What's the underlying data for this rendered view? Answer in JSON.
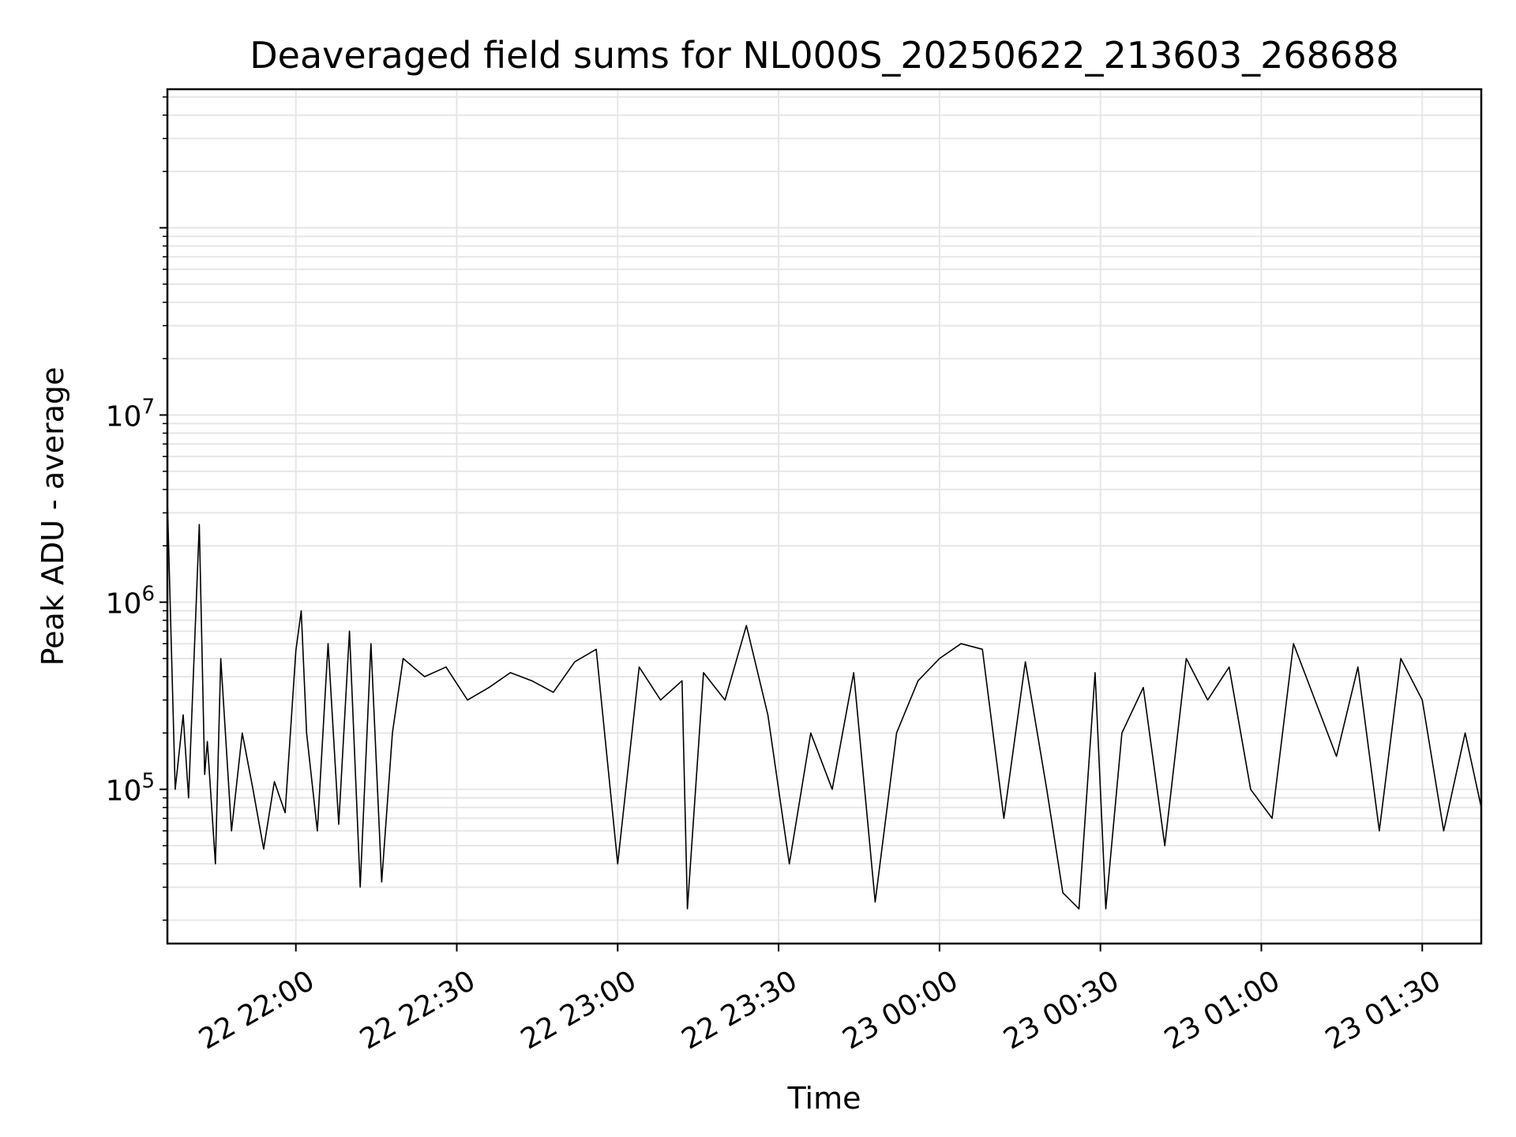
{
  "chart_data": {
    "type": "line",
    "title": "Deaveraged field sums for NL000S_20250622_213603_268688",
    "xlabel": "Time",
    "ylabel": "Peak ADU - average",
    "y_scale": "log",
    "ylim": [
      15000,
      550000000
    ],
    "xlim": [
      "2025-06-22T21:36:03",
      "2025-06-23T01:41:00"
    ],
    "x_ticks": [
      "22 22:00",
      "22 22:30",
      "22 23:00",
      "22 23:30",
      "23 00:00",
      "23 00:30",
      "23 01:00",
      "23 01:30"
    ],
    "x_tick_values": [
      "2025-06-22T22:00:00",
      "2025-06-22T22:30:00",
      "2025-06-22T23:00:00",
      "2025-06-22T23:30:00",
      "2025-06-23T00:00:00",
      "2025-06-23T00:30:00",
      "2025-06-23T01:00:00",
      "2025-06-23T01:30:00"
    ],
    "y_ticks": [
      {
        "base": "10",
        "exp": "5",
        "value": 100000
      },
      {
        "base": "10",
        "exp": "6",
        "value": 1000000
      },
      {
        "base": "10",
        "exp": "7",
        "value": 10000000
      }
    ],
    "grid": true,
    "line_color": "#000000",
    "grid_color": "#e6e6e6",
    "series": [
      {
        "x": [
          "2025-06-22T21:36:03",
          "2025-06-22T21:37:30",
          "2025-06-22T21:39:00",
          "2025-06-22T21:40:00",
          "2025-06-22T21:42:00",
          "2025-06-22T21:43:00",
          "2025-06-22T21:43:30",
          "2025-06-22T21:45:00",
          "2025-06-22T21:46:00",
          "2025-06-22T21:48:00",
          "2025-06-22T21:50:00",
          "2025-06-22T21:52:00",
          "2025-06-22T21:54:00",
          "2025-06-22T21:56:00",
          "2025-06-22T21:58:00",
          "2025-06-22T22:00:00",
          "2025-06-22T22:01:00",
          "2025-06-22T22:02:00",
          "2025-06-22T22:04:00",
          "2025-06-22T22:06:00",
          "2025-06-22T22:08:00",
          "2025-06-22T22:10:00",
          "2025-06-22T22:12:00",
          "2025-06-22T22:14:00",
          "2025-06-22T22:16:00",
          "2025-06-22T22:18:00",
          "2025-06-22T22:20:00",
          "2025-06-22T22:24:00",
          "2025-06-22T22:28:00",
          "2025-06-22T22:32:00",
          "2025-06-22T22:36:00",
          "2025-06-22T22:40:00",
          "2025-06-22T22:44:00",
          "2025-06-22T22:48:00",
          "2025-06-22T22:52:00",
          "2025-06-22T22:56:00",
          "2025-06-22T23:00:00",
          "2025-06-22T23:04:00",
          "2025-06-22T23:08:00",
          "2025-06-22T23:12:00",
          "2025-06-22T23:13:00",
          "2025-06-22T23:16:00",
          "2025-06-22T23:20:00",
          "2025-06-22T23:24:00",
          "2025-06-22T23:28:00",
          "2025-06-22T23:32:00",
          "2025-06-22T23:36:00",
          "2025-06-22T23:40:00",
          "2025-06-22T23:44:00",
          "2025-06-22T23:48:00",
          "2025-06-22T23:52:00",
          "2025-06-22T23:56:00",
          "2025-06-23T00:00:00",
          "2025-06-23T00:04:00",
          "2025-06-23T00:08:00",
          "2025-06-23T00:12:00",
          "2025-06-23T00:16:00",
          "2025-06-23T00:20:00",
          "2025-06-23T00:23:00",
          "2025-06-23T00:26:00",
          "2025-06-23T00:29:00",
          "2025-06-23T00:31:00",
          "2025-06-23T00:34:00",
          "2025-06-23T00:38:00",
          "2025-06-23T00:42:00",
          "2025-06-23T00:46:00",
          "2025-06-23T00:50:00",
          "2025-06-23T00:54:00",
          "2025-06-23T00:58:00",
          "2025-06-23T01:02:00",
          "2025-06-23T01:06:00",
          "2025-06-23T01:10:00",
          "2025-06-23T01:14:00",
          "2025-06-23T01:18:00",
          "2025-06-23T01:22:00",
          "2025-06-23T01:26:00",
          "2025-06-23T01:30:00",
          "2025-06-23T01:34:00",
          "2025-06-23T01:38:00",
          "2025-06-23T01:41:00"
        ],
        "values": [
          3500000,
          100000,
          250000,
          90000,
          2600000,
          120000,
          180000,
          40000,
          500000,
          60000,
          200000,
          100000,
          48000,
          110000,
          75000,
          550000,
          900000,
          200000,
          60000,
          600000,
          65000,
          700000,
          30000,
          600000,
          32000,
          200000,
          500000,
          400000,
          450000,
          300000,
          350000,
          420000,
          380000,
          330000,
          480000,
          560000,
          40000,
          450000,
          300000,
          380000,
          23000,
          420000,
          300000,
          750000,
          250000,
          40000,
          200000,
          100000,
          420000,
          25000,
          200000,
          380000,
          500000,
          600000,
          560000,
          70000,
          480000,
          100000,
          28000,
          23000,
          420000,
          23000,
          200000,
          350000,
          50000,
          500000,
          300000,
          450000,
          100000,
          70000,
          600000,
          300000,
          150000,
          450000,
          60000,
          500000,
          300000,
          60000,
          200000,
          80000
        ]
      }
    ]
  }
}
